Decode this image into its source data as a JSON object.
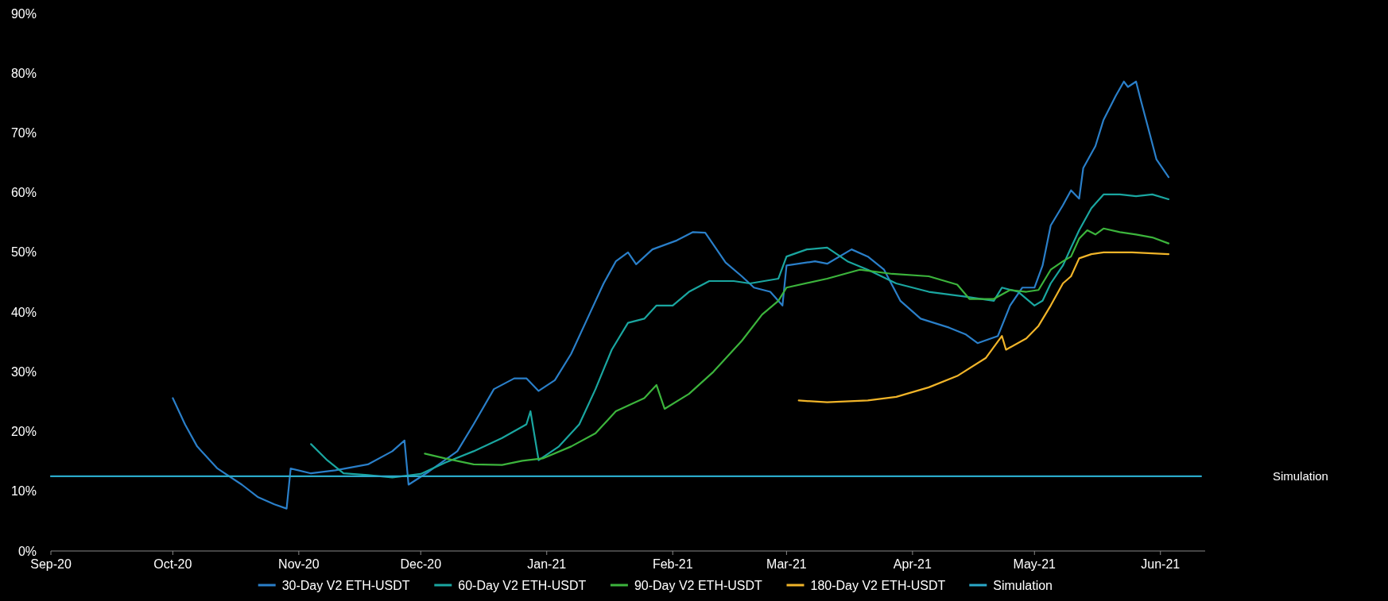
{
  "chart_data": {
    "type": "line",
    "xlim": [
      "2020-09-01",
      "2021-06-12"
    ],
    "xticks": [
      {
        "value": "2020-09-01",
        "label": "Sep-20"
      },
      {
        "value": "2020-10-01",
        "label": "Oct-20"
      },
      {
        "value": "2020-11-01",
        "label": "Nov-20"
      },
      {
        "value": "2020-12-01",
        "label": "Dec-20"
      },
      {
        "value": "2021-01-01",
        "label": "Jan-21"
      },
      {
        "value": "2021-02-01",
        "label": "Feb-21"
      },
      {
        "value": "2021-03-01",
        "label": "Mar-21"
      },
      {
        "value": "2021-04-01",
        "label": "Apr-21"
      },
      {
        "value": "2021-05-01",
        "label": "May-21"
      },
      {
        "value": "2021-06-01",
        "label": "Jun-21"
      }
    ],
    "ylim": [
      0,
      90
    ],
    "yticks": [
      {
        "value": 0,
        "label": "0%"
      },
      {
        "value": 10,
        "label": "10%"
      },
      {
        "value": 20,
        "label": "20%"
      },
      {
        "value": 30,
        "label": "30%"
      },
      {
        "value": 40,
        "label": "40%"
      },
      {
        "value": 50,
        "label": "50%"
      },
      {
        "value": 60,
        "label": "60%"
      },
      {
        "value": 70,
        "label": "70%"
      },
      {
        "value": 80,
        "label": "80%"
      },
      {
        "value": 90,
        "label": "90%"
      }
    ],
    "grid": false,
    "legend": "bottom",
    "marker": "none",
    "line_style": "solid",
    "series": [
      {
        "name": "30-Day V2 ETH-USDT",
        "color": "#2a7fc9",
        "x": [
          "2020-10-01",
          "2020-10-04",
          "2020-10-07",
          "2020-10-12",
          "2020-10-18",
          "2020-10-22",
          "2020-10-26",
          "2020-10-29",
          "2020-10-30",
          "2020-11-04",
          "2020-11-10",
          "2020-11-18",
          "2020-11-24",
          "2020-11-27",
          "2020-11-28",
          "2020-12-03",
          "2020-12-10",
          "2020-12-14",
          "2020-12-19",
          "2020-12-24",
          "2020-12-27",
          "2020-12-30",
          "2021-01-03",
          "2021-01-07",
          "2021-01-11",
          "2021-01-15",
          "2021-01-18",
          "2021-01-21",
          "2021-01-23",
          "2021-01-27",
          "2021-02-02",
          "2021-02-06",
          "2021-02-09",
          "2021-02-14",
          "2021-02-18",
          "2021-02-21",
          "2021-02-25",
          "2021-02-28",
          "2021-03-01",
          "2021-03-08",
          "2021-03-11",
          "2021-03-17",
          "2021-03-21",
          "2021-03-25",
          "2021-03-29",
          "2021-04-03",
          "2021-04-10",
          "2021-04-14",
          "2021-04-17",
          "2021-04-22",
          "2021-04-25",
          "2021-04-28",
          "2021-05-01",
          "2021-05-03",
          "2021-05-05",
          "2021-05-08",
          "2021-05-10",
          "2021-05-12",
          "2021-05-13",
          "2021-05-16",
          "2021-05-18",
          "2021-05-21",
          "2021-05-23",
          "2021-05-24",
          "2021-05-26",
          "2021-05-27",
          "2021-05-29",
          "2021-05-31",
          "2021-06-03"
        ],
        "values": [
          25.6,
          21.2,
          17.5,
          13.8,
          11.1,
          9.0,
          7.8,
          7.1,
          13.8,
          13.0,
          13.5,
          14.5,
          16.7,
          18.5,
          11.1,
          13.3,
          16.7,
          21.2,
          27.1,
          28.9,
          28.9,
          26.8,
          28.6,
          33,
          38.9,
          44.8,
          48.5,
          50,
          48,
          50.5,
          52,
          53.4,
          53.3,
          48.3,
          46,
          44.1,
          43.4,
          41.1,
          47.8,
          48.5,
          48.1,
          50.5,
          49.3,
          47.1,
          41.9,
          38.9,
          37.4,
          36.3,
          34.8,
          36,
          41.1,
          44.1,
          44.1,
          47.8,
          54.5,
          57.9,
          60.4,
          59,
          64.1,
          67.8,
          72.2,
          76.2,
          78.6,
          77.7,
          78.6,
          75.9,
          70.8,
          65.6,
          62.6
        ]
      },
      {
        "name": "60-Day V2 ETH-USDT",
        "color": "#1aa6a0",
        "x": [
          "2020-11-04",
          "2020-11-08",
          "2020-11-12",
          "2020-11-18",
          "2020-11-24",
          "2020-12-01",
          "2020-12-07",
          "2020-12-14",
          "2020-12-21",
          "2020-12-27",
          "2020-12-28",
          "2020-12-30",
          "2021-01-04",
          "2021-01-09",
          "2021-01-13",
          "2021-01-17",
          "2021-01-21",
          "2021-01-25",
          "2021-01-28",
          "2021-02-01",
          "2021-02-05",
          "2021-02-10",
          "2021-02-16",
          "2021-02-20",
          "2021-02-27",
          "2021-03-01",
          "2021-03-06",
          "2021-03-11",
          "2021-03-16",
          "2021-03-21",
          "2021-03-28",
          "2021-04-05",
          "2021-04-14",
          "2021-04-21",
          "2021-04-23",
          "2021-04-27",
          "2021-05-01",
          "2021-05-03",
          "2021-05-05",
          "2021-05-08",
          "2021-05-10",
          "2021-05-12",
          "2021-05-15",
          "2021-05-18",
          "2021-05-22",
          "2021-05-26",
          "2021-05-30",
          "2021-06-03"
        ],
        "values": [
          17.9,
          15.2,
          13,
          12.7,
          12.3,
          12.9,
          14.8,
          16.7,
          18.9,
          21.2,
          23.4,
          15.2,
          17.5,
          21.2,
          27.1,
          33.7,
          38.2,
          38.9,
          41.1,
          41.1,
          43.4,
          45.2,
          45.2,
          44.8,
          45.6,
          49.3,
          50.5,
          50.8,
          48.5,
          47.1,
          44.8,
          43.4,
          42.6,
          41.9,
          44.1,
          43.4,
          41.1,
          41.9,
          44.8,
          47.8,
          50.8,
          53.7,
          57.4,
          59.7,
          59.7,
          59.4,
          59.7,
          58.9
        ]
      },
      {
        "name": "90-Day V2 ETH-USDT",
        "color": "#3cb43c",
        "x": [
          "2020-12-02",
          "2020-12-07",
          "2020-12-14",
          "2020-12-21",
          "2020-12-26",
          "2020-12-31",
          "2021-01-07",
          "2021-01-13",
          "2021-01-18",
          "2021-01-25",
          "2021-01-28",
          "2021-01-30",
          "2021-02-05",
          "2021-02-11",
          "2021-02-18",
          "2021-02-23",
          "2021-02-27",
          "2021-03-01",
          "2021-03-11",
          "2021-03-19",
          "2021-03-27",
          "2021-04-05",
          "2021-04-12",
          "2021-04-15",
          "2021-04-21",
          "2021-04-25",
          "2021-04-29",
          "2021-05-02",
          "2021-05-05",
          "2021-05-08",
          "2021-05-10",
          "2021-05-12",
          "2021-05-14",
          "2021-05-16",
          "2021-05-18",
          "2021-05-22",
          "2021-05-26",
          "2021-05-30",
          "2021-06-03"
        ],
        "values": [
          16.3,
          15.5,
          14.5,
          14.4,
          15.1,
          15.5,
          17.5,
          19.7,
          23.4,
          25.6,
          27.8,
          23.8,
          26.3,
          30,
          35.2,
          39.6,
          41.9,
          44.1,
          45.6,
          47.1,
          46.4,
          46,
          44.6,
          42.2,
          42.2,
          43.7,
          43.4,
          43.7,
          47.1,
          48.5,
          49.3,
          52.3,
          53.7,
          53,
          54,
          53.4,
          53,
          52.5,
          51.5
        ]
      },
      {
        "name": "180-Day V2 ETH-USDT",
        "color": "#f0b429",
        "x": [
          "2021-03-04",
          "2021-03-11",
          "2021-03-21",
          "2021-03-28",
          "2021-04-05",
          "2021-04-12",
          "2021-04-19",
          "2021-04-23",
          "2021-04-24",
          "2021-04-29",
          "2021-05-02",
          "2021-05-05",
          "2021-05-08",
          "2021-05-10",
          "2021-05-12",
          "2021-05-15",
          "2021-05-18",
          "2021-05-25",
          "2021-06-03"
        ],
        "values": [
          25.2,
          24.9,
          25.2,
          25.8,
          27.4,
          29.3,
          32.3,
          36,
          33.7,
          35.6,
          37.7,
          41.1,
          44.8,
          46,
          49,
          49.7,
          50,
          50,
          49.7
        ]
      },
      {
        "name": "Simulation",
        "color": "#2aa8c8",
        "x": [
          "2020-09-01",
          "2021-06-11"
        ],
        "values": [
          12.5,
          12.5
        ]
      }
    ]
  }
}
